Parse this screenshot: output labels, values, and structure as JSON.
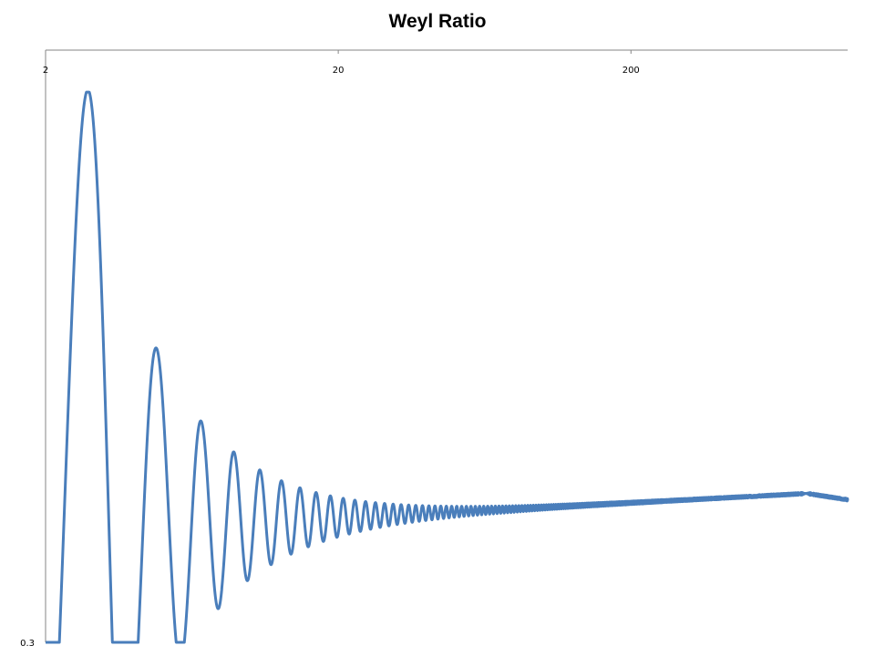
{
  "chart_data": {
    "type": "line",
    "title": "Weyl Ratio",
    "xlabel": "",
    "ylabel": "",
    "x_scale": "log",
    "xlim": [
      2,
      1100
    ],
    "x_ticks": [
      {
        "value": 2,
        "label": "2"
      },
      {
        "value": 20,
        "label": "20"
      },
      {
        "value": 200,
        "label": "200"
      }
    ],
    "ylim": [
      0.3,
      2.13
    ],
    "y_ticks": [
      {
        "value": 0.3,
        "label": "0.3"
      }
    ],
    "grid": false,
    "legend": "none",
    "series": [
      {
        "color": "#4a7ebb",
        "description_points": [
          [
            2.0,
            0.6
          ],
          [
            2.8,
            2.0
          ],
          [
            3.6,
            0.54
          ],
          [
            4.65,
            1.36
          ],
          [
            5.6,
            0.55
          ],
          [
            6.35,
            1.12
          ],
          [
            7.2,
            0.55
          ],
          [
            10,
            0.57
          ],
          [
            50,
            0.705
          ],
          [
            80,
            0.712
          ],
          [
            800,
            0.76
          ],
          [
            1100,
            0.74
          ]
        ]
      }
    ]
  }
}
